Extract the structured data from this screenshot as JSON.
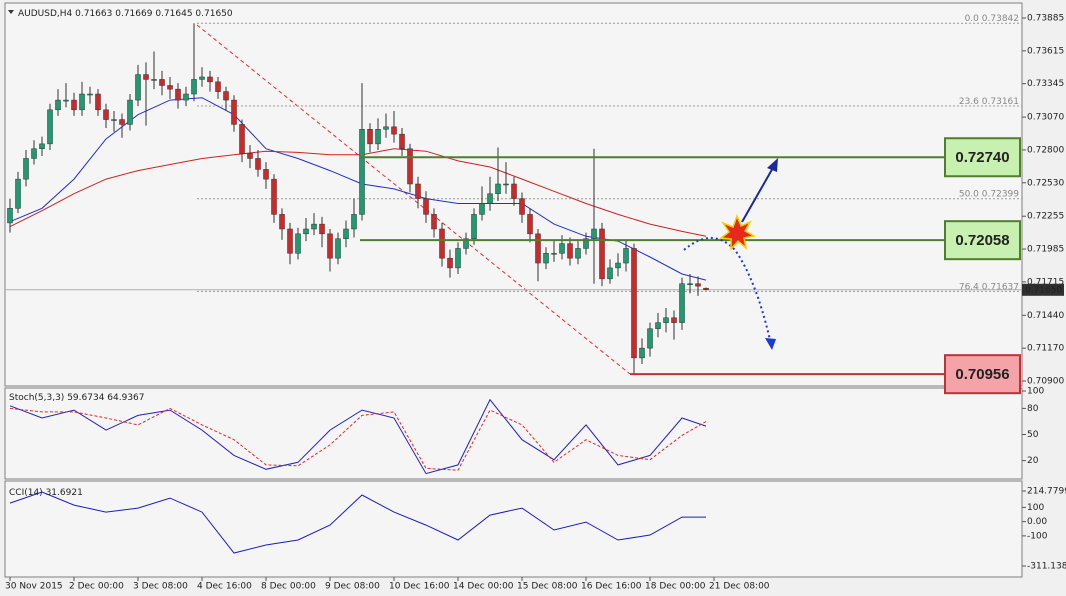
{
  "chart_data": [
    {
      "type": "candlestick",
      "title": "AUDUSD,H4",
      "header_values": [
        "0.71663",
        "0.71669",
        "0.71645",
        "0.71650"
      ],
      "up_color": "#1f9a72",
      "down_color": "#cc2a2a",
      "xlim": [
        -0.625,
        126.5
      ],
      "xticks": [
        {
          "value": 0,
          "label": "30 Nov 2015"
        },
        {
          "value": 8,
          "label": "2 Dec 00:00"
        },
        {
          "value": 16,
          "label": "3 Dec 08:00"
        },
        {
          "value": 24,
          "label": "4 Dec 16:00"
        },
        {
          "value": 32,
          "label": "8 Dec 00:00"
        },
        {
          "value": 40,
          "label": "9 Dec 08:00"
        },
        {
          "value": 48,
          "label": "10 Dec 16:00"
        },
        {
          "value": 56,
          "label": "14 Dec 00:00"
        },
        {
          "value": 64,
          "label": "15 Dec 08:00"
        },
        {
          "value": 72,
          "label": "16 Dec 16:00"
        },
        {
          "value": 80,
          "label": "18 Dec 00:00"
        },
        {
          "value": 88,
          "label": "21 Dec 08:00"
        }
      ],
      "ylim": [
        0.70867,
        0.73992
      ],
      "yticks": [
        0.73885,
        0.73615,
        0.73345,
        {
          "value": 0.7307,
          "label": "0.73070"
        },
        {
          "value": 0.728,
          "label": "0.72800"
        },
        {
          "value": 0.7253,
          "label": "0.72530"
        },
        0.72255,
        0.71985,
        0.71715,
        {
          "value": 0.7144,
          "label": "0.71440"
        },
        {
          "value": 0.7117,
          "label": "0.71170"
        },
        {
          "value": 0.709,
          "label": "0.70900"
        }
      ],
      "open": [
        0.722,
        0.7232,
        0.7256,
        0.7273,
        0.7281,
        0.7285,
        0.7313,
        0.7321,
        0.7321,
        0.7313,
        0.7326,
        0.7326,
        0.7313,
        0.7305,
        0.7305,
        0.7301,
        0.7321,
        0.7342,
        0.7338,
        0.7338,
        0.7333,
        0.733,
        0.7321,
        0.7326,
        0.7338,
        0.734,
        0.7336,
        0.7328,
        0.7321,
        0.7301,
        0.7277,
        0.7273,
        0.7264,
        0.7256,
        0.7227,
        0.7215,
        0.7195,
        0.7211,
        0.7215,
        0.7219,
        0.7211,
        0.7191,
        0.7207,
        0.7215,
        0.7227,
        0.7297,
        0.7285,
        0.7297,
        0.7299,
        0.7293,
        0.7281,
        0.7252,
        0.724,
        0.7227,
        0.7215,
        0.7191,
        0.7183,
        0.7199,
        0.7207,
        0.7227,
        0.7236,
        0.7244,
        0.7252,
        0.7252,
        0.724,
        0.7227,
        0.7211,
        0.7187,
        0.7195,
        0.7195,
        0.7203,
        0.7191,
        0.7199,
        0.7207,
        0.7215,
        0.7174,
        0.7183,
        0.7187,
        0.7199,
        0.7109,
        0.7117,
        0.7133,
        0.7138,
        0.7142,
        0.7138,
        0.717,
        0.717,
        0.71663
      ],
      "high": [
        0.724,
        0.7262,
        0.728,
        0.7288,
        0.7291,
        0.7318,
        0.733,
        0.7335,
        0.7327,
        0.7336,
        0.7332,
        0.733,
        0.7318,
        0.7312,
        0.731,
        0.7326,
        0.735,
        0.7352,
        0.7361,
        0.7345,
        0.734,
        0.7335,
        0.7332,
        0.73842,
        0.7348,
        0.7345,
        0.734,
        0.7332,
        0.7325,
        0.7305,
        0.7284,
        0.728,
        0.727,
        0.726,
        0.7232,
        0.722,
        0.7216,
        0.7224,
        0.7228,
        0.7225,
        0.7215,
        0.7212,
        0.7222,
        0.724,
        0.7335,
        0.7302,
        0.7306,
        0.731,
        0.7312,
        0.7298,
        0.7285,
        0.7258,
        0.7246,
        0.7232,
        0.722,
        0.7198,
        0.7204,
        0.7212,
        0.7232,
        0.725,
        0.7258,
        0.7282,
        0.727,
        0.7258,
        0.7245,
        0.7232,
        0.7215,
        0.72,
        0.7205,
        0.721,
        0.7208,
        0.7205,
        0.7212,
        0.7281,
        0.722,
        0.719,
        0.7195,
        0.7206,
        0.7203,
        0.7125,
        0.7138,
        0.7146,
        0.715,
        0.7148,
        0.7175,
        0.7178,
        0.7176,
        0.71669
      ],
      "low": [
        0.7212,
        0.7228,
        0.725,
        0.7268,
        0.7275,
        0.728,
        0.7308,
        0.7315,
        0.7308,
        0.7308,
        0.7318,
        0.7308,
        0.7298,
        0.7295,
        0.729,
        0.7296,
        0.7316,
        0.73,
        0.733,
        0.7325,
        0.7322,
        0.7314,
        0.7316,
        0.732,
        0.7332,
        0.7328,
        0.7322,
        0.7312,
        0.7295,
        0.727,
        0.7265,
        0.7258,
        0.7248,
        0.722,
        0.7206,
        0.7186,
        0.719,
        0.7205,
        0.721,
        0.72,
        0.718,
        0.7186,
        0.72,
        0.7208,
        0.7222,
        0.7278,
        0.728,
        0.729,
        0.7286,
        0.7275,
        0.7245,
        0.7232,
        0.722,
        0.7208,
        0.7184,
        0.7175,
        0.7178,
        0.7194,
        0.7202,
        0.7222,
        0.723,
        0.7238,
        0.7244,
        0.7234,
        0.722,
        0.7204,
        0.7172,
        0.7182,
        0.7188,
        0.719,
        0.7185,
        0.7186,
        0.7194,
        0.717,
        0.7168,
        0.717,
        0.7176,
        0.718,
        0.70956,
        0.7104,
        0.711,
        0.7126,
        0.713,
        0.7124,
        0.7132,
        0.7162,
        0.716,
        0.71645
      ],
      "close": [
        0.7232,
        0.7256,
        0.7273,
        0.7281,
        0.7285,
        0.7313,
        0.7321,
        0.7321,
        0.7313,
        0.7326,
        0.7326,
        0.7313,
        0.7305,
        0.7305,
        0.7301,
        0.7321,
        0.7342,
        0.7338,
        0.7338,
        0.7333,
        0.733,
        0.7321,
        0.7326,
        0.7338,
        0.734,
        0.7336,
        0.7328,
        0.7321,
        0.7301,
        0.7277,
        0.7273,
        0.7264,
        0.7256,
        0.7227,
        0.7215,
        0.7195,
        0.7211,
        0.7215,
        0.7219,
        0.7211,
        0.7191,
        0.7207,
        0.7215,
        0.7227,
        0.7297,
        0.7285,
        0.7297,
        0.7299,
        0.7293,
        0.7281,
        0.7252,
        0.724,
        0.7227,
        0.7215,
        0.7191,
        0.7183,
        0.7199,
        0.7207,
        0.7227,
        0.7236,
        0.7244,
        0.7252,
        0.7252,
        0.724,
        0.7227,
        0.7211,
        0.7187,
        0.7195,
        0.7195,
        0.7203,
        0.7191,
        0.7199,
        0.7207,
        0.7215,
        0.7174,
        0.7183,
        0.7187,
        0.7199,
        0.7109,
        0.7117,
        0.7133,
        0.7138,
        0.7142,
        0.7138,
        0.717,
        0.717,
        0.7168,
        0.7165
      ],
      "series": [
        {
          "color": "#2030d0",
          "x": [
            0,
            4,
            8,
            12,
            16,
            20,
            24,
            28,
            32,
            36,
            40,
            44,
            48,
            52,
            56,
            60,
            64,
            68,
            72,
            76,
            80,
            84,
            87
          ],
          "values": [
            0.7221,
            0.7232,
            0.7256,
            0.7289,
            0.7309,
            0.7321,
            0.7323,
            0.7309,
            0.7281,
            0.7273,
            0.7263,
            0.7252,
            0.7248,
            0.724,
            0.7236,
            0.7236,
            0.7236,
            0.7219,
            0.7209,
            0.7205,
            0.7192,
            0.7178,
            0.7173
          ]
        },
        {
          "color": "#d42020",
          "x": [
            0,
            4,
            8,
            12,
            16,
            20,
            24,
            28,
            32,
            36,
            40,
            44,
            48,
            52,
            56,
            60,
            64,
            68,
            72,
            76,
            80,
            84,
            87
          ],
          "values": [
            0.7217,
            0.723,
            0.7244,
            0.7256,
            0.7263,
            0.7268,
            0.7273,
            0.7276,
            0.7279,
            0.7278,
            0.7276,
            0.7276,
            0.7281,
            0.7279,
            0.7271,
            0.7266,
            0.7256,
            0.7246,
            0.7236,
            0.7227,
            0.7219,
            0.7213,
            0.7209
          ]
        }
      ],
      "fib_levels": [
        {
          "level": "0.0",
          "value": 0.73842
        },
        {
          "level": "23.6",
          "value": 0.73161
        },
        {
          "level": "50.0",
          "value": 0.72399
        },
        {
          "level": "76.4",
          "value": 0.71637
        }
      ],
      "levels": [
        {
          "value": 0.7274,
          "label": "0.72740",
          "color": "#4f7f2e",
          "fill": "#c8f0b0"
        },
        {
          "value": 0.72058,
          "color": "#4f7f2e",
          "fill": "#c8f0b0"
        },
        {
          "value": 0.70956,
          "color": "#c03038",
          "fill": "#f4a4a8"
        }
      ]
    },
    {
      "type": "line",
      "title": "Stoch(5,3,3)",
      "xlim": [
        -0.625,
        126.5
      ],
      "ylim": [
        0,
        100
      ],
      "yticks": [
        100,
        80,
        50,
        20
      ],
      "series": [
        {
          "color": "#2020c0",
          "x": [
            0,
            4,
            8,
            12,
            16,
            20,
            24,
            28,
            32,
            36,
            40,
            44,
            48,
            52,
            56,
            60,
            64,
            68,
            72,
            76,
            80,
            84,
            87
          ],
          "values": [
            83,
            69,
            78,
            55,
            72,
            78,
            55,
            26,
            10,
            18,
            55,
            78,
            69,
            5,
            15,
            90,
            44,
            21,
            61,
            15,
            26,
            69,
            59.6734
          ]
        },
        {
          "color": "#e02828",
          "dash": true,
          "x": [
            0,
            4,
            8,
            12,
            16,
            20,
            24,
            28,
            32,
            36,
            40,
            44,
            48,
            52,
            56,
            60,
            64,
            68,
            72,
            76,
            80,
            84,
            87
          ],
          "values": [
            80,
            76,
            76,
            69,
            61,
            80,
            61,
            44,
            15,
            14,
            38,
            72,
            76,
            11,
            9,
            78,
            61,
            18,
            44,
            26,
            21,
            49,
            64.9367
          ]
        }
      ]
    },
    {
      "type": "line",
      "title": "CCI(14)",
      "xlim": [
        -0.625,
        126.5
      ],
      "ylim": [
        -311.1384,
        214.7799
      ],
      "yticks": [
        214.7799,
        100,
        {
          "value": 0,
          "label": "0.00"
        },
        -100,
        -311.1384
      ],
      "series": [
        {
          "color": "#1a1ac8",
          "x": [
            0,
            4,
            8,
            12,
            16,
            20,
            24,
            28,
            32,
            36,
            40,
            44,
            48,
            52,
            56,
            60,
            64,
            68,
            72,
            76,
            80,
            84,
            87
          ],
          "values": [
            130,
            208,
            116,
            67,
            95,
            165,
            67,
            -220,
            -164,
            -129,
            -24,
            187,
            67,
            -24,
            -129,
            46,
            95,
            -59,
            -3,
            -129,
            -94,
            32,
            31.6921
          ]
        }
      ]
    }
  ]
}
